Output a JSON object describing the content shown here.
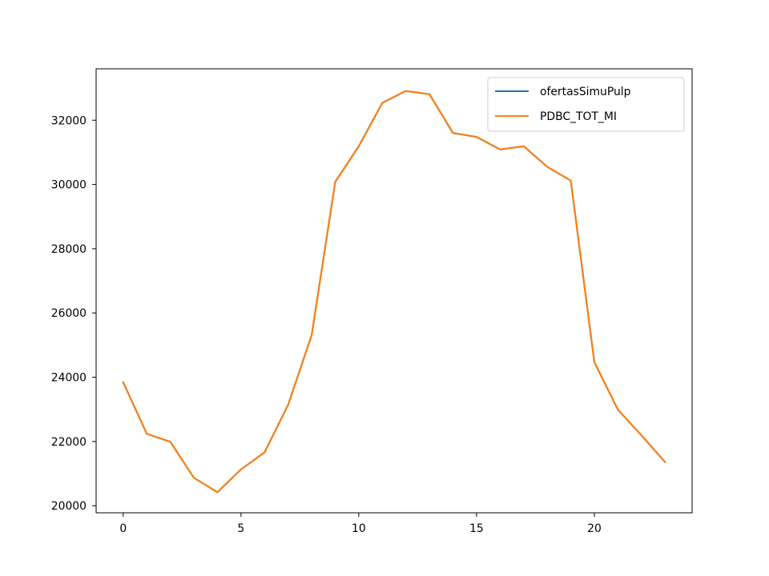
{
  "chart_data": {
    "type": "line",
    "title": "",
    "xlabel": "",
    "ylabel": "",
    "xlim": [
      -1.15,
      24.15
    ],
    "ylim": [
      19780,
      33600
    ],
    "xticks": [
      0,
      5,
      10,
      15,
      20
    ],
    "xtick_labels": [
      "0",
      "5",
      "10",
      "15",
      "20"
    ],
    "yticks": [
      20000,
      22000,
      24000,
      26000,
      28000,
      30000,
      32000
    ],
    "ytick_labels": [
      "20000",
      "22000",
      "24000",
      "26000",
      "28000",
      "30000",
      "32000"
    ],
    "grid": false,
    "legend_position": "top-right",
    "x": [
      0,
      1,
      2,
      3,
      4,
      5,
      6,
      7,
      8,
      9,
      10,
      11,
      12,
      13,
      14,
      15,
      16,
      17,
      18,
      19,
      20,
      21,
      22,
      23
    ],
    "series": [
      {
        "name": "ofertasSimuPulp",
        "color": "#1f77b4",
        "values": [
          23840,
          22240,
          21990,
          20870,
          20420,
          21130,
          21660,
          23140,
          25310,
          30080,
          31190,
          32540,
          32910,
          32810,
          31600,
          31480,
          31090,
          31190,
          30550,
          30120,
          24470,
          22990,
          22190,
          21360
        ]
      },
      {
        "name": "PDBC_TOT_MI",
        "color": "#ff7f0e",
        "values": [
          23840,
          22240,
          21990,
          20870,
          20420,
          21130,
          21660,
          23140,
          25310,
          30080,
          31190,
          32540,
          32910,
          32810,
          31600,
          31480,
          31090,
          31190,
          30550,
          30120,
          24470,
          22990,
          22190,
          21360
        ]
      }
    ]
  }
}
